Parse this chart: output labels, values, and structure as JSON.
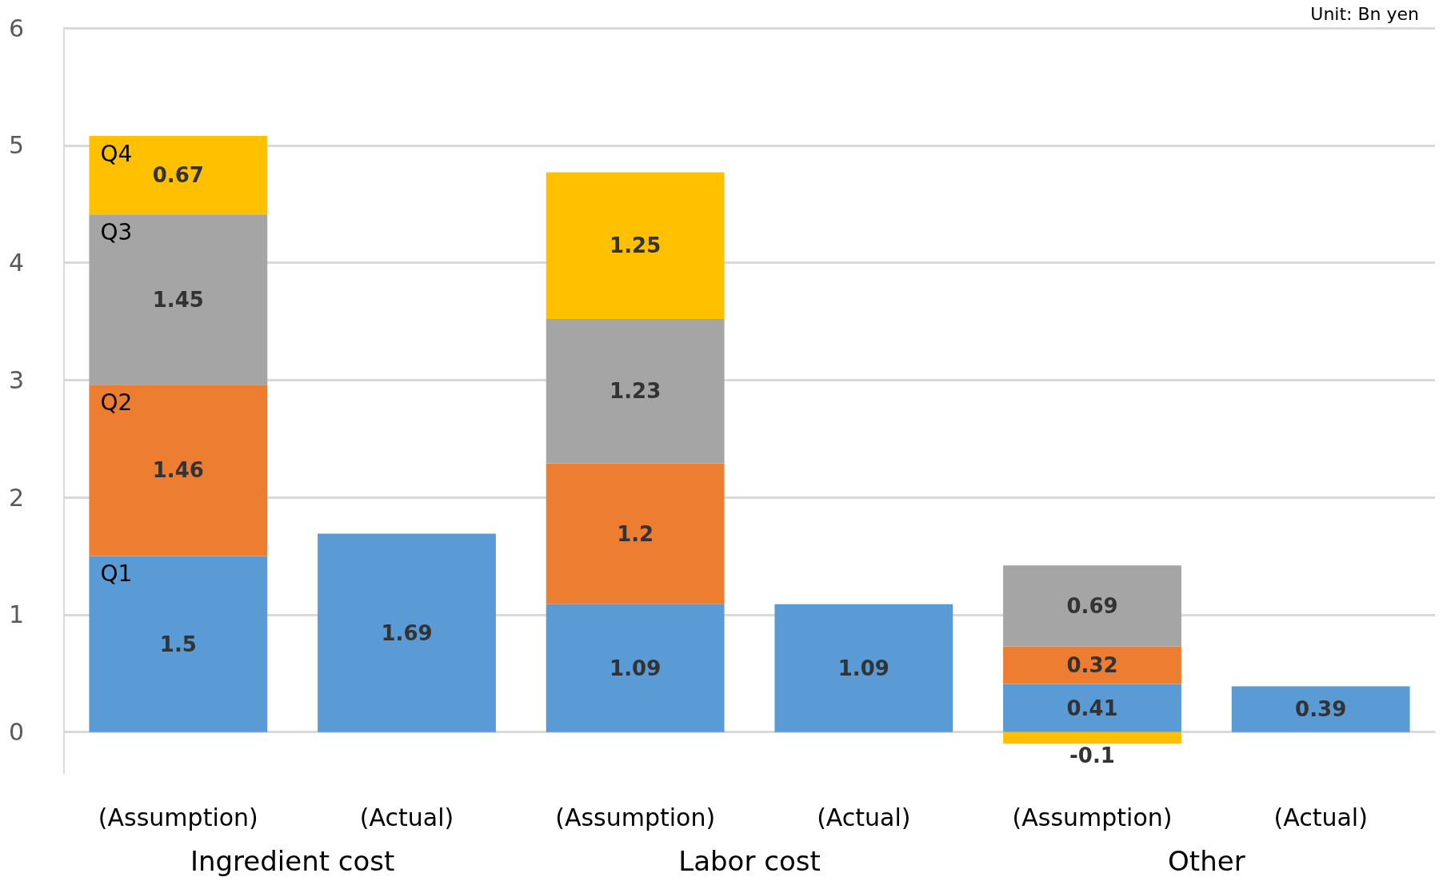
{
  "chart_data": {
    "type": "bar",
    "stacked": true,
    "data_labels": true,
    "grid": "y",
    "legend": false,
    "categories": [
      "(Assumption)",
      "(Actual)",
      "(Assumption)",
      "(Actual)",
      "(Assumption)",
      "(Actual)"
    ],
    "series": [
      {
        "name": "Q1",
        "color": "#5b9bd5",
        "values": [
          1.5,
          1.69,
          1.09,
          1.09,
          0.41,
          0.39
        ]
      },
      {
        "name": "Q2",
        "color": "#ed7d31",
        "values": [
          1.46,
          null,
          1.2,
          null,
          0.32,
          null
        ]
      },
      {
        "name": "Q3",
        "color": "#a5a5a5",
        "values": [
          1.45,
          null,
          1.23,
          null,
          0.69,
          null
        ]
      },
      {
        "name": "Q4",
        "color": "#ffc000",
        "values": [
          0.67,
          null,
          1.25,
          null,
          -0.1,
          null
        ]
      }
    ],
    "ylim": [
      -0.35,
      6
    ],
    "yticks": [
      0,
      1,
      2,
      3,
      4,
      5,
      6
    ],
    "annotations": [
      "Unit: Bn yen",
      "Ingredient cost",
      "Labor cost",
      "Other"
    ]
  }
}
